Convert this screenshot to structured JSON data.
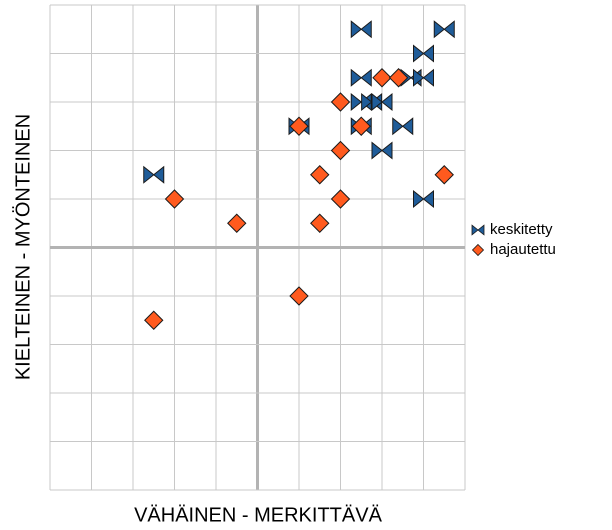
{
  "chart_data": {
    "type": "scatter",
    "xlabel": "VÄHÄINEN - MERKITTÄVÄ",
    "ylabel": "KIELTEINEN - MYÖNTEINEN",
    "xlim": [
      -5,
      5
    ],
    "ylim": [
      -5,
      5
    ],
    "xticks": [
      -5,
      -4,
      -3,
      -2,
      -1,
      0,
      1,
      2,
      3,
      4,
      5
    ],
    "yticks": [
      -5,
      -4,
      -3,
      -2,
      -1,
      0,
      1,
      2,
      3,
      4,
      5
    ],
    "grid": true,
    "legend": "right",
    "series": [
      {
        "name": "keskitetty",
        "color": "#1f5c99",
        "marker": "bowtie",
        "x": [
          2.5,
          4.5,
          4.0,
          2.5,
          3.7,
          4.0,
          2.5,
          2.75,
          3.0,
          1.0,
          2.5,
          3.5,
          3.0,
          -2.5,
          4.0
        ],
        "values": [
          4.5,
          4.5,
          4.0,
          3.5,
          3.5,
          3.5,
          3.0,
          3.0,
          3.0,
          2.5,
          2.5,
          2.5,
          2.0,
          1.5,
          1.0
        ]
      },
      {
        "name": "hajautettu",
        "color": "#ff5a1e",
        "marker": "diamond",
        "x": [
          3.0,
          3.4,
          2.0,
          1.0,
          2.5,
          2.0,
          4.5,
          1.5,
          -2.0,
          2.0,
          -0.5,
          1.5,
          1.0,
          -2.5
        ],
        "values": [
          3.5,
          3.5,
          3.0,
          2.5,
          2.5,
          2.0,
          1.5,
          1.5,
          1.0,
          1.0,
          0.5,
          0.5,
          -1.0,
          -1.5
        ]
      }
    ]
  }
}
